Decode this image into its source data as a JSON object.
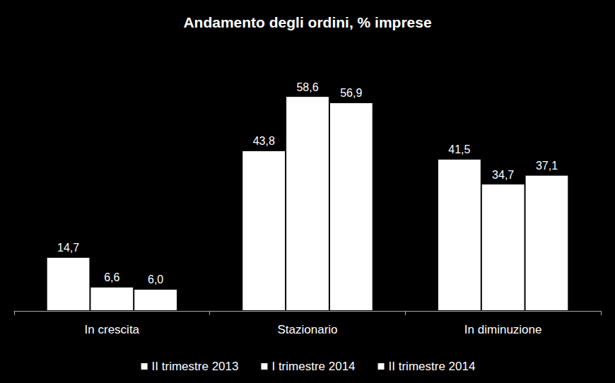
{
  "chart_data": {
    "type": "bar",
    "title": "Andamento degli ordini, % imprese",
    "categories": [
      "In crescita",
      "Stazionario",
      "In diminuzione"
    ],
    "series": [
      {
        "name": "II trimestre 2013",
        "color": "#ffffff",
        "values": [
          14.7,
          43.8,
          41.5
        ],
        "value_labels": [
          "14,7",
          "43,8",
          "41,5"
        ]
      },
      {
        "name": "I trimestre 2014",
        "color": "#ffffff",
        "values": [
          6.6,
          58.6,
          34.7
        ],
        "value_labels": [
          "6,6",
          "58,6",
          "34,7"
        ]
      },
      {
        "name": "II trimestre 2014",
        "color": "#ffffff",
        "values": [
          6.0,
          56.9,
          37.1
        ],
        "value_labels": [
          "6,0",
          "56,9",
          "37,1"
        ]
      }
    ],
    "ylim": [
      0,
      70
    ],
    "data_labels": true,
    "tick_labels": "x",
    "legend": "bottom",
    "grid": false
  }
}
